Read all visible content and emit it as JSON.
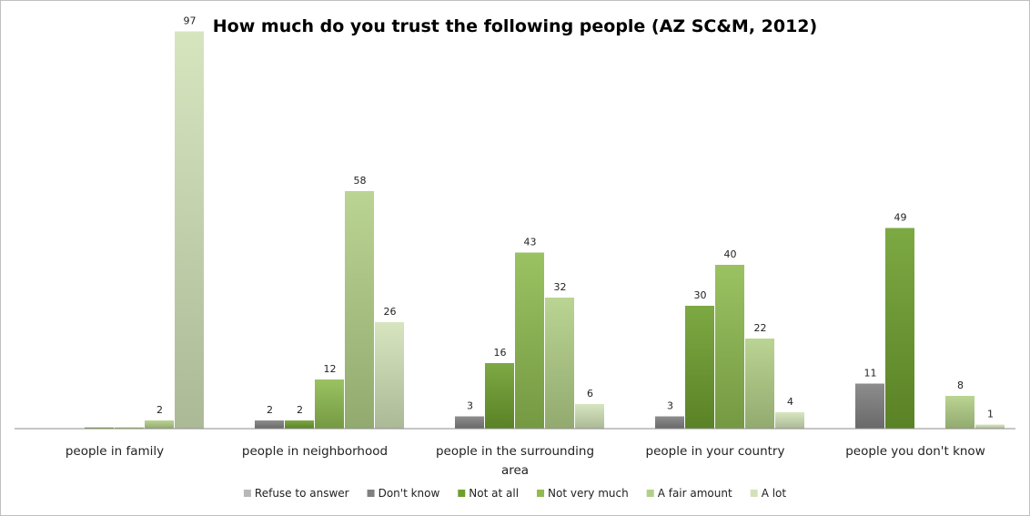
{
  "chart_data": {
    "type": "bar",
    "title": "How much do you trust the following people (AZ SC&M, 2012)",
    "xlabel": "",
    "ylabel": "",
    "ylim": [
      0,
      100
    ],
    "grid": false,
    "legend_position": "bottom",
    "categories": [
      [
        "people in family"
      ],
      [
        "people in neighborhood"
      ],
      [
        "people in the surrounding",
        "area"
      ],
      [
        "people in your country"
      ],
      [
        "people you don't know"
      ]
    ],
    "series": [
      {
        "name": "Refuse to answer",
        "color": "#b7b7b7",
        "values": [
          0,
          0,
          0,
          0,
          0
        ],
        "labels": [
          "",
          "",
          "",
          "",
          ""
        ]
      },
      {
        "name": "Don't know",
        "color": "#808080",
        "values": [
          0,
          2,
          3,
          3,
          11
        ],
        "labels": [
          "",
          "2",
          "3",
          "3",
          "11"
        ]
      },
      {
        "name": "Not at all",
        "color": "#6e9f2e",
        "values": [
          0.3,
          2,
          16,
          30,
          49
        ],
        "labels": [
          "",
          "2",
          "16",
          "30",
          "49"
        ]
      },
      {
        "name": "Not very much",
        "color": "#8fbb50",
        "values": [
          0.3,
          12,
          43,
          40,
          0
        ],
        "labels": [
          "",
          "12",
          "43",
          "40",
          ""
        ]
      },
      {
        "name": "A fair amount",
        "color": "#b2cf87",
        "values": [
          2,
          58,
          32,
          22,
          8
        ],
        "labels": [
          "2",
          "58",
          "32",
          "22",
          "8"
        ]
      },
      {
        "name": "A lot",
        "color": "#d2e2b8",
        "values": [
          97,
          26,
          6,
          4,
          1
        ],
        "labels": [
          "97",
          "26",
          "6",
          "4",
          "1"
        ]
      }
    ]
  }
}
